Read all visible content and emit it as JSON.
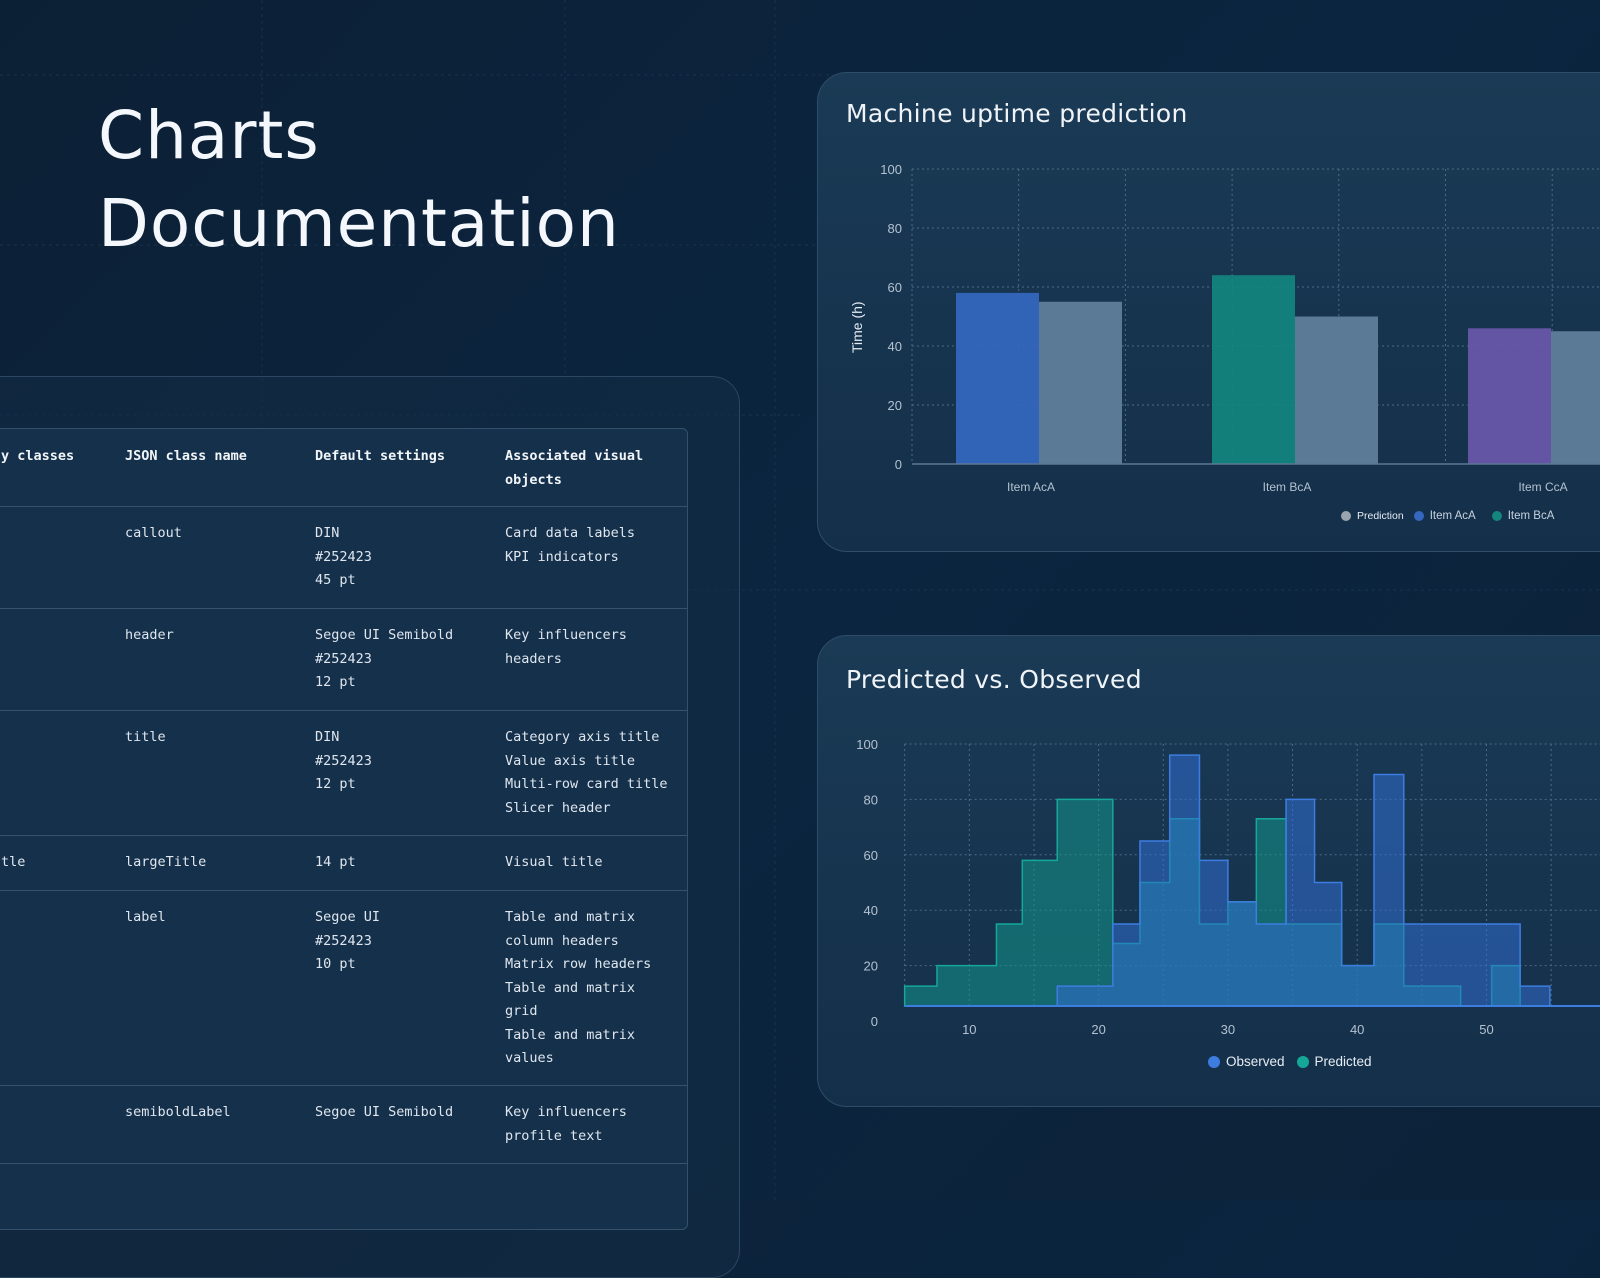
{
  "page": {
    "title_line1": "Charts",
    "title_line2": "Documentation"
  },
  "table": {
    "headers": [
      "y classes",
      "JSON class name",
      "Default settings",
      "Associated visual objects"
    ],
    "header_col4_lines": [
      "Associated visual",
      "objects"
    ],
    "rows": [
      {
        "col1": "",
        "json": "callout",
        "settings": [
          "DIN",
          "#252423",
          "45 pt"
        ],
        "visuals": [
          "Card data labels",
          "KPI indicators"
        ]
      },
      {
        "col1": "",
        "json": "header",
        "settings": [
          "Segoe UI Semibold",
          "#252423",
          "12 pt"
        ],
        "visuals": [
          "Key influencers",
          "headers"
        ]
      },
      {
        "col1": "",
        "json": "title",
        "settings": [
          "DIN",
          "#252423",
          "12 pt"
        ],
        "visuals": [
          "Category axis title",
          "Value axis title",
          "Multi-row card title",
          "Slicer header"
        ]
      },
      {
        "col1": "tle",
        "json": "largeTitle",
        "settings": [
          "14 pt"
        ],
        "visuals": [
          "Visual title"
        ]
      },
      {
        "col1": "",
        "json": "label",
        "settings": [
          "Segoe UI",
          "#252423",
          "10 pt"
        ],
        "visuals": [
          "Table and matrix",
          "column headers",
          "Matrix row headers",
          "Table and matrix",
          "grid",
          "Table and matrix",
          "values"
        ]
      },
      {
        "col1": "",
        "json": "semiboldLabel",
        "settings": [
          "Segoe UI Semibold"
        ],
        "visuals": [
          "Key influencers",
          "profile text"
        ]
      }
    ]
  },
  "chart_data": [
    {
      "type": "bar",
      "title": "Machine uptime prediction",
      "ylabel": "Time (h)",
      "xlabel": "",
      "ylim": [
        0,
        100
      ],
      "yticks": [
        0,
        20,
        40,
        60,
        80,
        100
      ],
      "grid": true,
      "legend_position": "bottom-right",
      "categories": [
        "Item AcA",
        "Item BcA",
        "Item CcA"
      ],
      "item_values": [
        58,
        64,
        46
      ],
      "item_colors": [
        "#3467c0",
        "#14857f",
        "#6a58aa"
      ],
      "prediction_values": [
        55,
        50,
        45
      ],
      "prediction_color": "#5b7a96",
      "legend": [
        {
          "label": "Prediction",
          "color": "#9aa4ae"
        },
        {
          "label": "Item AcA",
          "color": "#3467c0"
        },
        {
          "label": "Item BcA",
          "color": "#14857f"
        }
      ]
    },
    {
      "type": "area",
      "subtype": "step-histogram",
      "title": "Predicted vs. Observed",
      "xlim": [
        5,
        60
      ],
      "ylim": [
        0,
        100
      ],
      "xticks": [
        10,
        20,
        30,
        40,
        50
      ],
      "yticks": [
        0,
        20,
        40,
        60,
        80,
        100
      ],
      "grid": true,
      "legend_position": "bottom-center",
      "bin_edges": [
        5,
        7.5,
        12.1,
        14.1,
        16.8,
        21.1,
        23.2,
        25.5,
        27.8,
        30,
        32.2,
        34.5,
        36.7,
        38.8,
        41.3,
        43.6,
        48,
        50.4,
        52.6,
        54.9,
        60
      ],
      "series": [
        {
          "name": "Observed",
          "color": "#3d7de0",
          "values": [
            0,
            0,
            0,
            0,
            12.6,
            35,
            65,
            96,
            58,
            43,
            35,
            80,
            50,
            20,
            89,
            35,
            35,
            35,
            12.6,
            0
          ]
        },
        {
          "name": "Predicted",
          "color": "#15a898",
          "values": [
            12.6,
            20,
            35,
            58,
            80,
            28,
            50,
            73,
            35,
            43,
            73,
            35,
            35,
            20,
            35,
            12.6,
            0,
            20,
            0,
            0
          ]
        }
      ]
    }
  ]
}
